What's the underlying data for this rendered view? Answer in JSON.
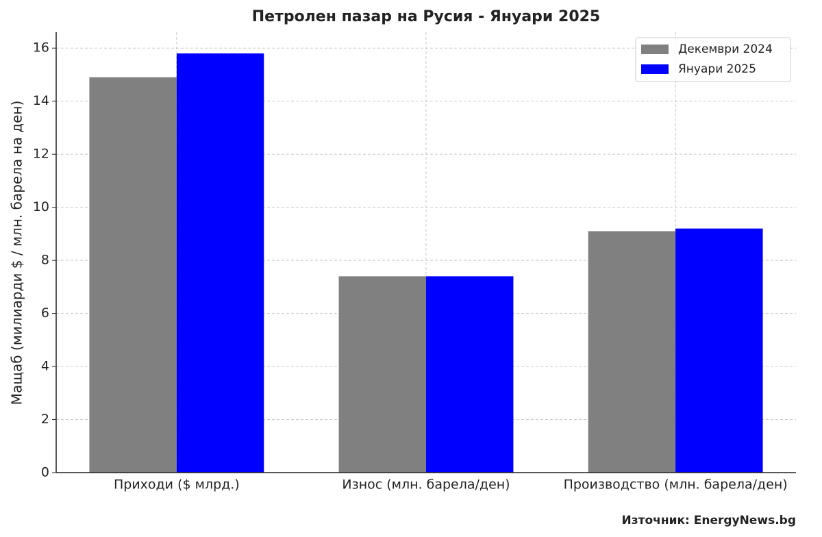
{
  "chart_data": {
    "type": "bar",
    "title": "Петролен пазар на Русия - Януари 2025",
    "y_label": "Мащаб (милиарди $ / млн. барела на ден)",
    "source": "Източник: EnergyNews.bg",
    "categories": [
      "Приходи ($ млрд.)",
      "Износ (млн. барела/ден)",
      "Производство (млн. барела/ден)"
    ],
    "series": [
      {
        "name": "Декември 2024",
        "color": "#808080",
        "values": [
          14.9,
          7.4,
          9.1
        ]
      },
      {
        "name": "Януари 2025",
        "color": "#0000ff",
        "values": [
          15.8,
          7.4,
          9.2
        ]
      }
    ],
    "ylim": [
      0,
      16.6
    ],
    "yticks": [
      0,
      2,
      4,
      6,
      8,
      10,
      12,
      14,
      16
    ],
    "grid": true,
    "legend": "upper right"
  }
}
